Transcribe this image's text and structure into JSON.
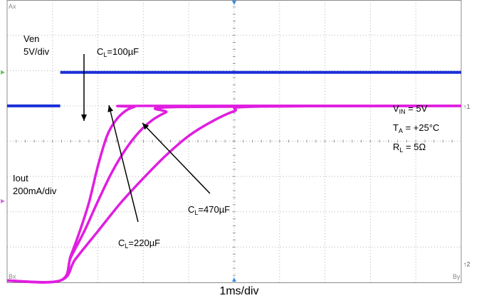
{
  "chart_data": {
    "type": "line",
    "time_scale": "1ms/div",
    "series": [
      {
        "name": "Ven",
        "channel_marker": "↑1",
        "scale": "5V/div",
        "color": "#1a2fd6",
        "x_ms": [
          0,
          1.17,
          1.17,
          10
        ],
        "y_div": [
          5.0,
          5.0,
          5.95,
          5.95
        ]
      },
      {
        "name": "Iout",
        "channel_marker": "↑2",
        "scale": "200mA/div",
        "color": "#e01ee0",
        "curves": [
          {
            "label": "100µF",
            "x_ms": [
              0,
              1.17,
              1.4,
              1.6,
              1.8,
              2.0,
              2.2,
              2.4,
              2.6,
              2.8,
              3.0,
              10
            ],
            "y_div": [
              0.05,
              0.05,
              0.75,
              1.45,
              2.25,
              3.3,
              4.15,
              4.6,
              4.85,
              4.97,
              5.0,
              5.0
            ]
          },
          {
            "label": "220µF",
            "x_ms": [
              0,
              1.17,
              1.4,
              1.7,
              2.0,
              2.3,
              2.6,
              2.9,
              3.2,
              3.5,
              3.8,
              10
            ],
            "y_div": [
              0.05,
              0.05,
              0.7,
              1.45,
              2.3,
              3.1,
              3.75,
              4.25,
              4.6,
              4.82,
              4.97,
              5.0
            ]
          },
          {
            "label": "470µF",
            "x_ms": [
              0,
              1.17,
              1.5,
              2.0,
              2.5,
              3.0,
              3.5,
              4.0,
              4.5,
              5.0,
              5.5,
              10
            ],
            "y_div": [
              0.05,
              0.05,
              0.65,
              1.45,
              2.25,
              2.95,
              3.6,
              4.15,
              4.55,
              4.85,
              4.98,
              5.0
            ]
          }
        ]
      }
    ],
    "grid": true,
    "divisions": {
      "x": 10,
      "y": 8
    },
    "annotations": {
      "ven_name": "Ven",
      "ven_scale": "5V/div",
      "iout_name": "Iout",
      "iout_scale": "200mA/div",
      "c100": {
        "main": "C",
        "sub": "L",
        "value": "=100µF"
      },
      "c220": {
        "main": "C",
        "sub": "L",
        "value": "=220µF"
      },
      "c470": {
        "main": "C",
        "sub": "L",
        "value": "=470µF"
      },
      "vin": {
        "main": "V",
        "sub": "IN",
        "value": " = 5V"
      },
      "ta": {
        "main": "T",
        "sub": "A",
        "value": " = +25°C"
      },
      "rl": {
        "main": "R",
        "sub": "L",
        "value": " = 5Ω"
      }
    },
    "corner_labels": {
      "top_left": "Ax",
      "bottom_left": "Bx",
      "bottom_right": "By"
    },
    "xlabel": "1ms/div"
  }
}
